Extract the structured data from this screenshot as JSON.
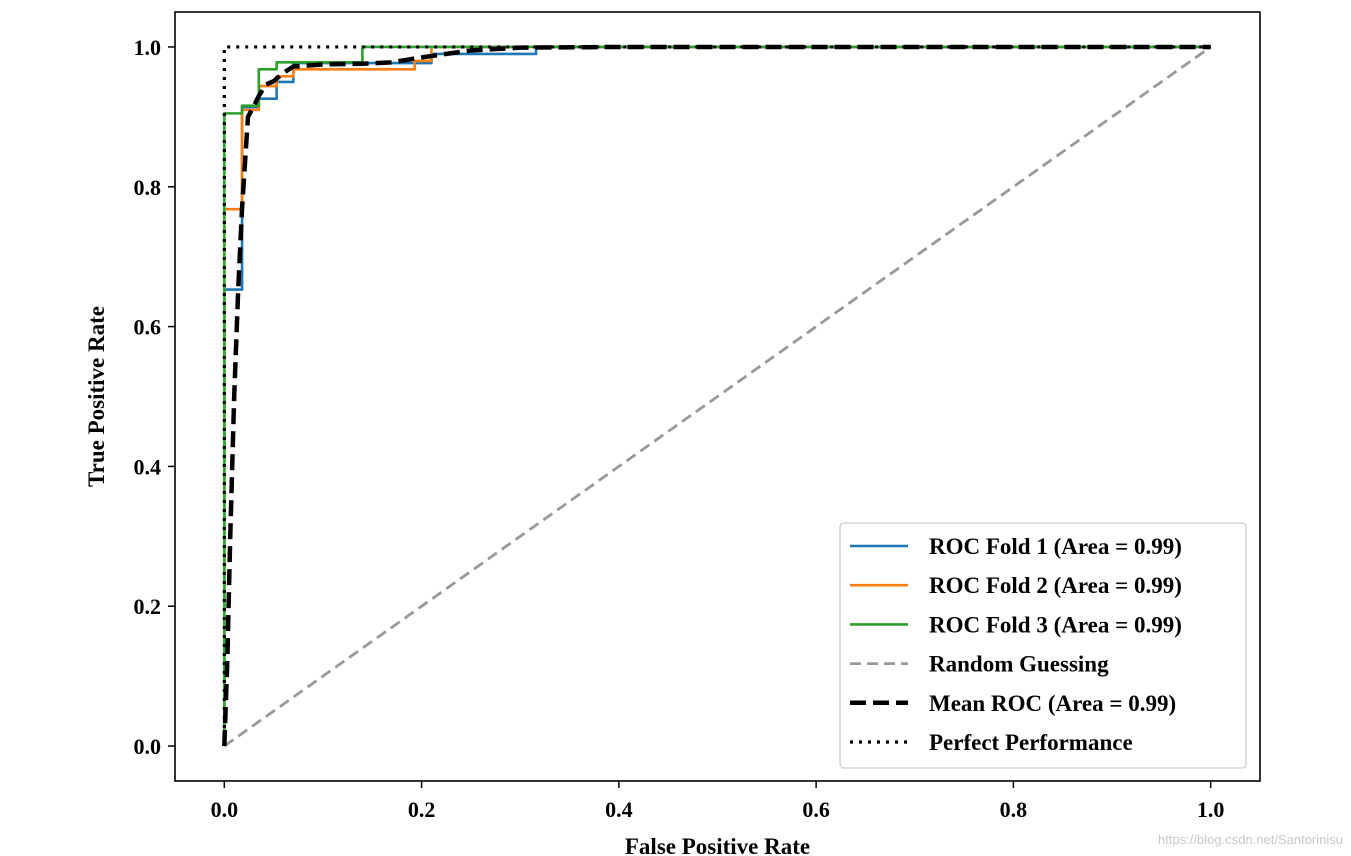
{
  "chart_data": {
    "type": "line",
    "title": "",
    "xlabel": "False Positive Rate",
    "ylabel": "True Positive Rate",
    "xlim": [
      -0.05,
      1.05
    ],
    "ylim": [
      -0.05,
      1.05
    ],
    "xticks": [
      0.0,
      0.2,
      0.4,
      0.6,
      0.8,
      1.0
    ],
    "xtick_labels": [
      "0.0",
      "0.2",
      "0.4",
      "0.6",
      "0.8",
      "1.0"
    ],
    "yticks": [
      0.0,
      0.2,
      0.4,
      0.6,
      0.8,
      1.0
    ],
    "ytick_labels": [
      "0.0",
      "0.2",
      "0.4",
      "0.6",
      "0.8",
      "1.0"
    ],
    "grid": false,
    "legend_position": "bottom-right",
    "series": [
      {
        "name": "ROC Fold 1 (Area = 0.99)",
        "color": "#1f77b4",
        "style": "solid",
        "x": [
          0,
          0,
          0.018,
          0.018,
          0.035,
          0.035,
          0.053,
          0.053,
          0.07,
          0.07,
          0.21,
          0.21,
          0.316,
          0.316,
          1.0
        ],
        "y": [
          0,
          0.653,
          0.653,
          0.914,
          0.914,
          0.926,
          0.926,
          0.95,
          0.95,
          0.977,
          0.977,
          0.99,
          0.99,
          1.0,
          1.0
        ]
      },
      {
        "name": "ROC Fold 2 (Area = 0.99)",
        "color": "#ff7f0e",
        "style": "solid",
        "x": [
          0,
          0,
          0.018,
          0.018,
          0.035,
          0.035,
          0.053,
          0.053,
          0.07,
          0.07,
          0.193,
          0.193,
          0.21,
          0.21,
          1.0
        ],
        "y": [
          0,
          0.768,
          0.768,
          0.91,
          0.91,
          0.944,
          0.944,
          0.958,
          0.958,
          0.968,
          0.968,
          0.98,
          0.98,
          1.0,
          1.0
        ]
      },
      {
        "name": "ROC Fold 3 (Area = 0.99)",
        "color": "#2ca02c",
        "style": "solid",
        "x": [
          0,
          0,
          0.018,
          0.018,
          0.035,
          0.035,
          0.053,
          0.053,
          0.14,
          0.14,
          1.0
        ],
        "y": [
          0,
          0.905,
          0.905,
          0.916,
          0.916,
          0.968,
          0.968,
          0.978,
          0.978,
          1.0,
          1.0
        ]
      },
      {
        "name": "Random Guessing",
        "color": "#999999",
        "style": "dashed",
        "x": [
          0,
          1
        ],
        "y": [
          0,
          1
        ]
      },
      {
        "name": "Mean ROC (Area = 0.99)",
        "color": "#000000",
        "style": "dashed-bold",
        "x": [
          0,
          0.003,
          0.006,
          0.01,
          0.014,
          0.018,
          0.024,
          0.03,
          0.035,
          0.042,
          0.05,
          0.06,
          0.07,
          0.08,
          0.1,
          0.14,
          0.17,
          0.2,
          0.25,
          0.3,
          0.4,
          0.6,
          0.8,
          1.0
        ],
        "y": [
          0,
          0.12,
          0.3,
          0.5,
          0.65,
          0.77,
          0.9,
          0.916,
          0.93,
          0.946,
          0.951,
          0.963,
          0.972,
          0.973,
          0.975,
          0.976,
          0.978,
          0.985,
          0.995,
          0.999,
          1.0,
          1.0,
          1.0,
          1.0
        ]
      },
      {
        "name": "Perfect Performance",
        "color": "#000000",
        "style": "dotted",
        "x": [
          0,
          0,
          1
        ],
        "y": [
          0,
          1,
          1
        ]
      }
    ]
  },
  "watermark": "https://blog.csdn.net/Santorinisu"
}
